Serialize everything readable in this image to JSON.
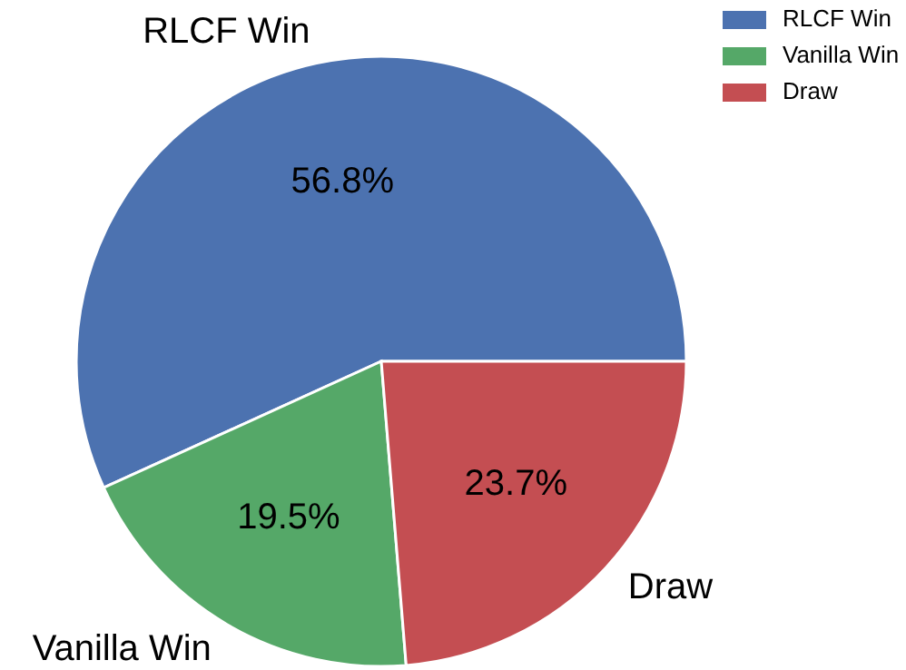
{
  "chart_data": {
    "type": "pie",
    "categories": [
      "RLCF Win",
      "Vanilla Win",
      "Draw"
    ],
    "values": [
      56.8,
      19.5,
      23.7
    ],
    "colors": [
      "#4c72b0",
      "#55a868",
      "#c44e52"
    ],
    "value_labels": [
      "56.8%",
      "19.5%",
      "23.7%"
    ],
    "legend": "top right"
  }
}
